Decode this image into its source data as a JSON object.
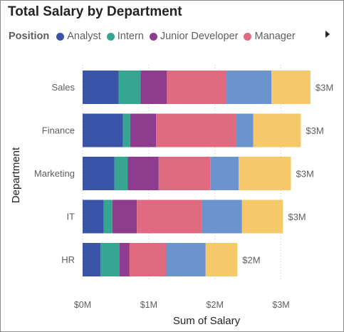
{
  "chart_data": {
    "type": "bar",
    "orientation": "horizontal",
    "stacked": true,
    "title": "Total Salary by Department",
    "xlabel": "Sum of Salary",
    "ylabel": "Department",
    "xlim": [
      0,
      3500000
    ],
    "x_ticks": [
      0,
      1000000,
      2000000,
      3000000
    ],
    "x_tick_labels": [
      "$0M",
      "$1M",
      "$2M",
      "$3M"
    ],
    "grid": true,
    "legend_title": "Position",
    "legend_position": "top-left",
    "categories": [
      "Sales",
      "Finance",
      "Marketing",
      "IT",
      "HR"
    ],
    "total_labels": [
      "$3M",
      "$3M",
      "$3M",
      "$3M",
      "$2M"
    ],
    "series": [
      {
        "name": "Analyst",
        "color": "#3a55a8",
        "values": [
          545000,
          610000,
          480000,
          320000,
          270000
        ]
      },
      {
        "name": "Intern",
        "color": "#36a591",
        "values": [
          330000,
          110000,
          200000,
          130000,
          290000
        ]
      },
      {
        "name": "Junior Developer",
        "color": "#8e3c8d",
        "values": [
          400000,
          390000,
          470000,
          370000,
          150000
        ]
      },
      {
        "name": "Manager",
        "color": "#e06b80",
        "values": [
          890000,
          1210000,
          780000,
          980000,
          550000
        ]
      },
      {
        "name": "",
        "color": "#6b93cc",
        "values": [
          690000,
          260000,
          430000,
          610000,
          600000
        ]
      },
      {
        "name": "",
        "color": "#f5c96a",
        "values": [
          590000,
          720000,
          790000,
          620000,
          480000
        ]
      }
    ]
  }
}
